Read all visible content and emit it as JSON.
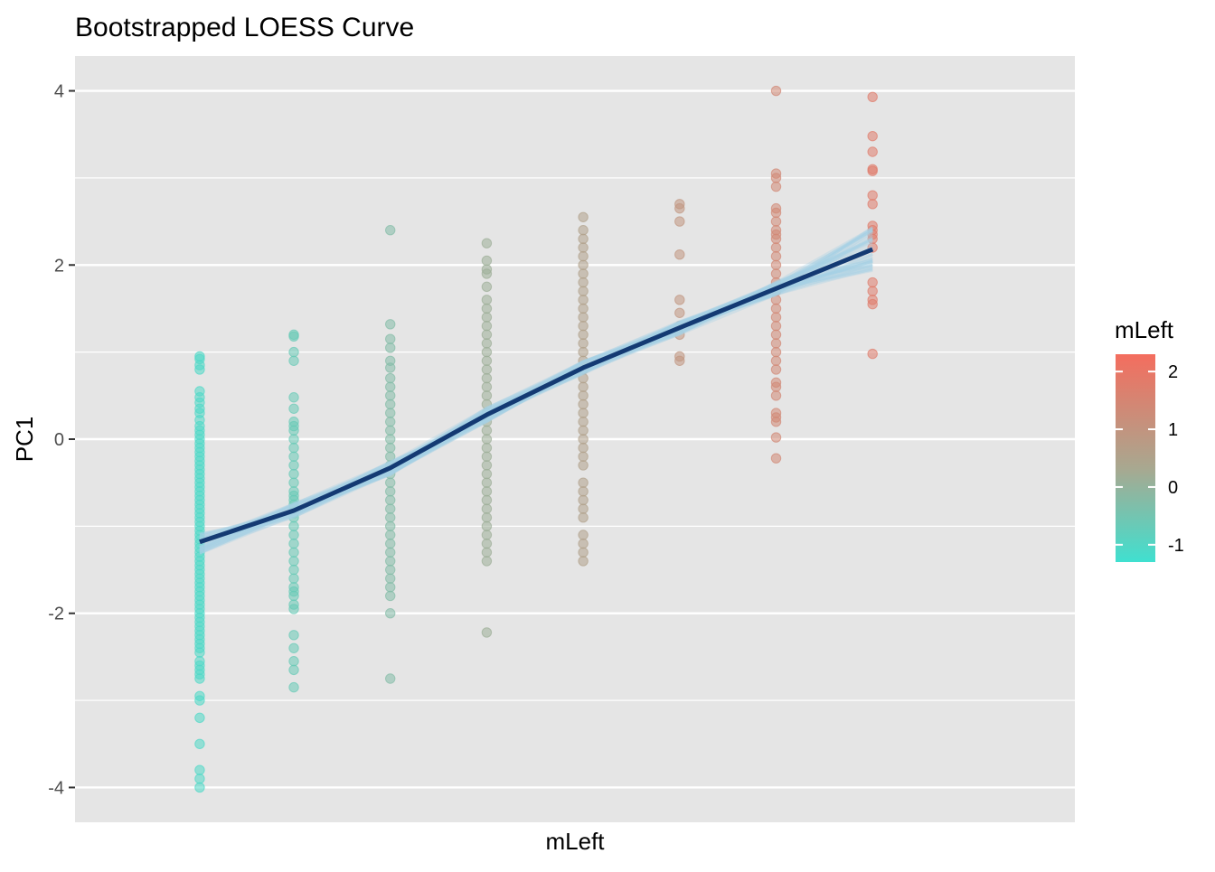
{
  "chart_data": {
    "type": "scatter",
    "title": "Bootstrapped LOESS Curve",
    "xlabel": "mLeft",
    "ylabel": "PC1",
    "ylim": [
      -4.4,
      4.4
    ],
    "xlim": [
      -1.6,
      2.65
    ],
    "y_ticks": [
      -4,
      -2,
      0,
      2,
      4
    ],
    "y_tick_labels": [
      "-4",
      "-2",
      "0",
      "2",
      "4"
    ],
    "x_ticks_shown": false,
    "grid": true,
    "legend": {
      "title": "mLeft",
      "placement": "right",
      "type": "color-gradient",
      "range": [
        -1.3,
        2.3
      ],
      "ticks": [
        -1,
        0,
        1,
        2
      ],
      "tick_labels": [
        "-1",
        "0",
        "1",
        "2"
      ],
      "low_color": "#40e0d0",
      "mid_color": "#a8a890",
      "high_color": "#f46d5e"
    },
    "colors": {
      "panel_background": "#e5e5e5",
      "grid": "#ffffff",
      "mean_curve": "#143a73",
      "bootstrap_curves": "#a6d0e6"
    },
    "series": [
      {
        "x": -1.07,
        "y": [
          0.95,
          0.92,
          0.85,
          0.8,
          0.55,
          0.48,
          0.42,
          0.35,
          0.3,
          0.22,
          0.15,
          0.1,
          0.05,
          0.0,
          -0.05,
          -0.1,
          -0.15,
          -0.2,
          -0.25,
          -0.3,
          -0.35,
          -0.4,
          -0.45,
          -0.5,
          -0.55,
          -0.6,
          -0.65,
          -0.7,
          -0.75,
          -0.8,
          -0.85,
          -0.9,
          -0.95,
          -1.0,
          -1.05,
          -1.1,
          -1.15,
          -1.2,
          -1.25,
          -1.3,
          -1.35,
          -1.4,
          -1.45,
          -1.5,
          -1.55,
          -1.6,
          -1.65,
          -1.7,
          -1.75,
          -1.8,
          -1.85,
          -1.9,
          -1.95,
          -2.0,
          -2.05,
          -2.1,
          -2.15,
          -2.2,
          -2.25,
          -2.3,
          -2.35,
          -2.4,
          -2.45,
          -2.55,
          -2.6,
          -2.65,
          -2.7,
          -2.75,
          -2.95,
          -3.0,
          -3.2,
          -3.5,
          -3.8,
          -3.9,
          -4.0
        ]
      },
      {
        "x": -0.67,
        "y": [
          1.2,
          1.18,
          1.0,
          0.9,
          0.48,
          0.35,
          0.2,
          0.15,
          0.1,
          0.0,
          -0.1,
          -0.2,
          -0.3,
          -0.4,
          -0.5,
          -0.6,
          -0.65,
          -0.7,
          -0.75,
          -0.8,
          -0.85,
          -0.9,
          -1.0,
          -1.1,
          -1.2,
          -1.3,
          -1.4,
          -1.5,
          -1.6,
          -1.7,
          -1.75,
          -1.8,
          -1.9,
          -1.95,
          -2.25,
          -2.4,
          -2.55,
          -2.65,
          -2.85
        ]
      },
      {
        "x": -0.26,
        "y": [
          2.4,
          1.32,
          1.15,
          1.05,
          0.9,
          0.82,
          0.7,
          0.6,
          0.5,
          0.4,
          0.3,
          0.2,
          0.1,
          0.0,
          -0.1,
          -0.2,
          -0.3,
          -0.4,
          -0.5,
          -0.6,
          -0.7,
          -0.8,
          -0.9,
          -1.0,
          -1.1,
          -1.2,
          -1.3,
          -1.4,
          -1.5,
          -1.6,
          -1.7,
          -1.8,
          -2.0,
          -2.75
        ]
      },
      {
        "x": 0.15,
        "y": [
          2.25,
          2.05,
          1.95,
          1.9,
          1.75,
          1.6,
          1.5,
          1.4,
          1.3,
          1.2,
          1.1,
          1.0,
          0.9,
          0.8,
          0.7,
          0.6,
          0.5,
          0.4,
          0.3,
          0.2,
          0.1,
          0.0,
          -0.1,
          -0.2,
          -0.3,
          -0.4,
          -0.5,
          -0.6,
          -0.7,
          -0.8,
          -0.9,
          -1.0,
          -1.1,
          -1.2,
          -1.3,
          -1.4,
          -2.22
        ]
      },
      {
        "x": 0.56,
        "y": [
          2.55,
          2.4,
          2.3,
          2.2,
          2.1,
          2.0,
          1.9,
          1.8,
          1.7,
          1.6,
          1.5,
          1.4,
          1.3,
          1.2,
          1.1,
          1.0,
          0.9,
          0.8,
          0.7,
          0.6,
          0.5,
          0.4,
          0.3,
          0.2,
          0.1,
          0.0,
          -0.1,
          -0.2,
          -0.3,
          -0.5,
          -0.6,
          -0.7,
          -0.8,
          -0.9,
          -1.1,
          -1.2,
          -1.3,
          -1.4
        ]
      },
      {
        "x": 0.97,
        "y": [
          2.7,
          2.65,
          2.5,
          2.12,
          1.6,
          1.45,
          1.3,
          1.2,
          0.95,
          0.9
        ]
      },
      {
        "x": 1.38,
        "y": [
          4.0,
          3.05,
          3.0,
          2.9,
          2.65,
          2.6,
          2.5,
          2.4,
          2.35,
          2.3,
          2.2,
          2.1,
          2.0,
          1.9,
          1.8,
          1.7,
          1.6,
          1.5,
          1.4,
          1.3,
          1.2,
          1.1,
          1.0,
          0.9,
          0.8,
          0.65,
          0.6,
          0.5,
          0.3,
          0.25,
          0.2,
          0.02,
          -0.22
        ]
      },
      {
        "x": 1.79,
        "y": [
          3.93,
          3.48,
          3.3,
          3.1,
          3.08,
          2.8,
          2.7,
          2.45,
          2.4,
          2.35,
          2.3,
          2.2,
          1.8,
          1.7,
          1.6,
          1.55,
          0.98
        ]
      }
    ],
    "loess_curve": {
      "x": [
        -1.07,
        -0.67,
        -0.26,
        0.15,
        0.56,
        0.97,
        1.38,
        1.79
      ],
      "y": [
        -1.18,
        -0.82,
        -0.33,
        0.28,
        0.82,
        1.28,
        1.73,
        2.18
      ]
    }
  }
}
